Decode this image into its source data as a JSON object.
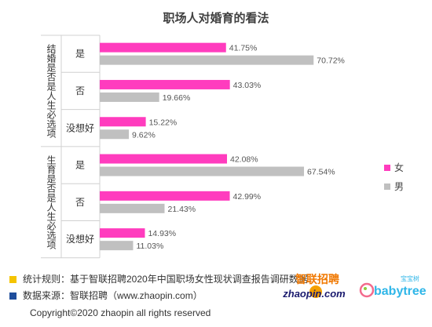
{
  "chart_data": {
    "type": "bar",
    "orientation": "horizontal",
    "title": "职场人对婚育的看法",
    "groups": [
      {
        "label": "结婚是否是人生必选项",
        "categories": [
          "是",
          "否",
          "没想好"
        ],
        "series": [
          {
            "name": "女",
            "values": [
              41.75,
              43.03,
              15.22
            ]
          },
          {
            "name": "男",
            "values": [
              70.72,
              19.66,
              9.62
            ]
          }
        ]
      },
      {
        "label": "生育是否是人生必选项",
        "categories": [
          "是",
          "否",
          "没想好"
        ],
        "series": [
          {
            "name": "女",
            "values": [
              42.08,
              42.99,
              14.93
            ]
          },
          {
            "name": "男",
            "values": [
              67.54,
              21.43,
              11.03
            ]
          }
        ]
      }
    ],
    "value_labels": [
      [
        "41.75%",
        "70.72%"
      ],
      [
        "43.03%",
        "19.66%"
      ],
      [
        "15.22%",
        "9.62%"
      ],
      [
        "42.08%",
        "67.54%"
      ],
      [
        "42.99%",
        "21.43%"
      ],
      [
        "14.93%",
        "11.03%"
      ]
    ],
    "legend": [
      "女",
      "男"
    ],
    "legend_position": "right",
    "xlim": [
      0,
      80
    ],
    "grid": false,
    "colors": {
      "女": "#ff3cbe",
      "男": "#c0c0c0"
    }
  },
  "footer": {
    "rule": "统计规则：基于智联招聘2020年中国职场女性现状调查报告调研数据",
    "source": "数据来源：智联招聘（www.zhaopin.com）",
    "copyright": "Copyright©2020 zhaopin all rights reserved",
    "rule_color": "#f5c400",
    "source_color": "#1f4e9c"
  },
  "logos": {
    "zhaopin_cn": "智联招聘",
    "zhaopin_en": "zhaopin.com",
    "babytree_cn": "宝宝树",
    "babytree_en": "babytree"
  }
}
